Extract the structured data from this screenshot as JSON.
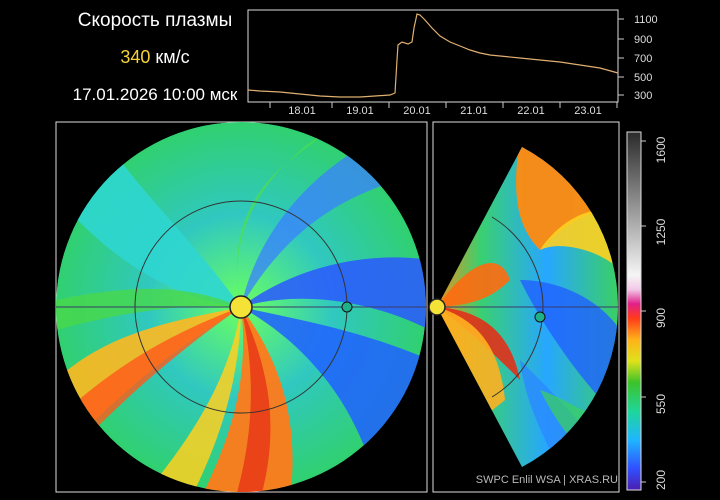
{
  "header": {
    "title": "Скорость плазмы",
    "speed_value": "340",
    "speed_unit": "км/с",
    "datetime": "17.01.2026 10:00 мск"
  },
  "timeseries": {
    "x_labels": [
      "18.01",
      "19.01",
      "20.01",
      "21.01",
      "22.01",
      "23.01"
    ],
    "y_labels": [
      "1100",
      "900",
      "700",
      "500",
      "300"
    ],
    "ylim": [
      250,
      1200
    ],
    "line_color": "#e0b070"
  },
  "colorbar": {
    "labels": [
      "1600",
      "1250",
      "900",
      "550",
      "200"
    ]
  },
  "credit": "SWPC Enlil WSA  |  XRAS.RU",
  "colors": {
    "sun": "#f4e236",
    "earth": "#1fb28a",
    "background": "#000000"
  }
}
